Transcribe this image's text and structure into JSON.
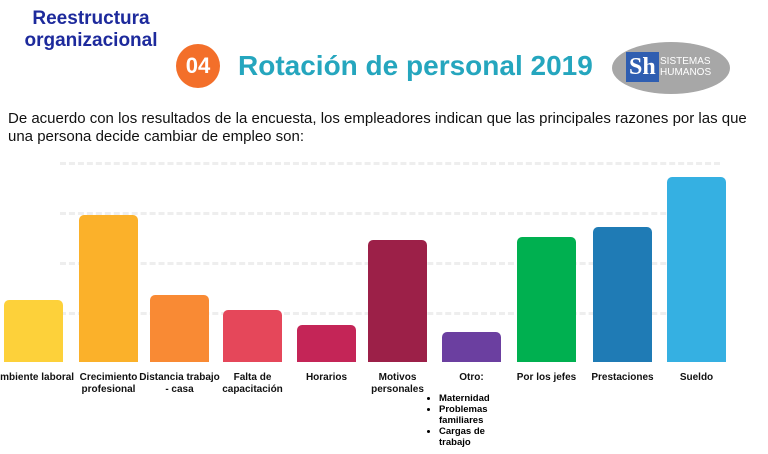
{
  "header": {
    "section": "Reestructura organizacional",
    "number": "04",
    "title": "Rotación de personal 2019",
    "logo_mark": "Sh",
    "logo_text": "SISTEMAS HUMANOS"
  },
  "intro": "De acuerdo con los resultados de la encuesta, los empleadores indican que las principales razones por las que una persona decide cambiar de empleo son:",
  "chart_data": {
    "type": "bar",
    "categories": [
      "Ambiente laboral",
      "Crecimiento profesional",
      "Distancia trabajo - casa",
      "Falta de capacitación",
      "Horarios",
      "Motivos personales",
      "Otro:",
      "Por los jefes",
      "Prestaciones",
      "Sueldo"
    ],
    "values": [
      1.25,
      2.95,
      1.35,
      1.05,
      0.75,
      2.45,
      0.6,
      2.5,
      2.7,
      3.7
    ],
    "colors": [
      "#fdd13a",
      "#fbb12a",
      "#f98a34",
      "#e5475a",
      "#c42557",
      "#9c2048",
      "#6b3fa0",
      "#00b050",
      "#1f7bb5",
      "#35b0e2"
    ],
    "ylim": [
      0,
      4
    ],
    "yticks": [
      1,
      2,
      3,
      4
    ],
    "grid": true,
    "other_reasons": [
      "Maternidad",
      "Problemas familiares",
      "Cargas de trabajo"
    ]
  }
}
